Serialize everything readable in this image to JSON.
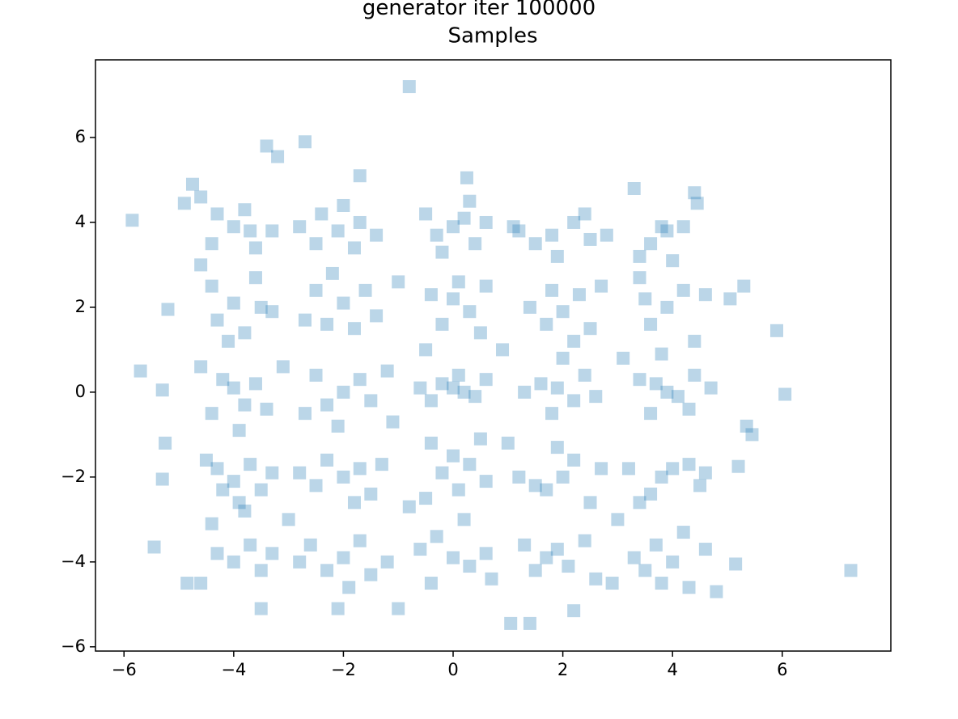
{
  "chart_data": {
    "type": "scatter",
    "suptitle": "generator iter 100000",
    "title": "Samples",
    "color": "#1f77b4",
    "alpha": 0.3,
    "marker": "square",
    "xlim": [
      -6.52,
      7.98
    ],
    "ylim": [
      -6.1,
      7.83
    ],
    "xticks": [
      {
        "value": -6,
        "label": "−6"
      },
      {
        "value": -4,
        "label": "−4"
      },
      {
        "value": -2,
        "label": "−2"
      },
      0,
      2,
      4,
      6
    ],
    "yticks": [
      {
        "value": -6,
        "label": "−6"
      },
      {
        "value": -4,
        "label": "−4"
      },
      {
        "value": -2,
        "label": "−2"
      },
      0,
      2,
      4,
      6
    ],
    "x": [
      -4.0,
      -3.7,
      -4.3,
      -3.6,
      -4.4,
      -3.8,
      -4.6,
      -3.3,
      -2.1,
      -1.7,
      -2.4,
      -1.8,
      -2.5,
      -1.4,
      -2.0,
      -2.8,
      0.0,
      0.2,
      -0.3,
      0.4,
      -0.5,
      0.6,
      -0.2,
      0.3,
      1.8,
      2.2,
      1.5,
      2.5,
      1.9,
      2.4,
      1.2,
      2.8,
      3.9,
      3.6,
      4.2,
      3.4,
      4.0,
      3.3,
      4.4,
      3.8,
      -4.0,
      -3.6,
      -4.3,
      -3.8,
      -3.5,
      -4.4,
      -3.3,
      -4.1,
      -2.0,
      -2.3,
      -1.6,
      -2.5,
      -1.8,
      -2.2,
      -1.4,
      -2.7,
      0.0,
      -0.2,
      0.3,
      0.1,
      -0.4,
      0.5,
      -0.5,
      0.6,
      2.0,
      1.7,
      2.3,
      1.8,
      2.5,
      1.4,
      2.2,
      2.7,
      3.9,
      3.6,
      4.2,
      3.5,
      4.4,
      3.8,
      4.6,
      3.4,
      -4.0,
      -3.8,
      -4.2,
      -3.6,
      -4.4,
      -3.9,
      -4.6,
      -3.4,
      -2.0,
      -1.7,
      -2.3,
      -1.5,
      -2.5,
      -2.1,
      -1.2,
      -2.7,
      0.0,
      0.2,
      -0.2,
      0.4,
      -0.4,
      0.1,
      0.6,
      -0.6,
      1.9,
      2.2,
      1.6,
      2.4,
      1.8,
      2.6,
      1.3,
      2.0,
      3.9,
      4.1,
      3.7,
      4.3,
      3.6,
      4.4,
      3.4,
      4.7,
      -4.0,
      -3.7,
      -4.3,
      -3.9,
      -3.5,
      -4.5,
      -3.3,
      -4.2,
      -2.0,
      -1.7,
      -2.3,
      -1.5,
      -2.5,
      -1.8,
      -2.8,
      -1.3,
      0.0,
      -0.2,
      0.3,
      0.1,
      -0.4,
      0.5,
      -0.5,
      0.6,
      2.0,
      1.7,
      2.2,
      1.5,
      2.5,
      1.9,
      2.7,
      1.2,
      4.0,
      4.3,
      3.6,
      3.8,
      4.5,
      3.4,
      4.6,
      3.2,
      -4.0,
      -3.7,
      -4.3,
      -3.5,
      -3.8,
      -4.4,
      -3.3,
      -4.6,
      -2.0,
      -1.7,
      -2.3,
      -1.5,
      -2.6,
      -1.9,
      -1.2,
      -2.8,
      0.0,
      -0.3,
      0.3,
      -0.6,
      0.2,
      0.6,
      -0.4,
      0.7,
      1.9,
      2.1,
      1.7,
      2.4,
      1.5,
      2.6,
      1.3,
      2.9,
      4.0,
      3.7,
      4.3,
      3.5,
      4.2,
      3.8,
      4.6,
      3.3,
      -0.8,
      7.25,
      -5.85,
      6.05,
      5.9,
      1.05,
      1.4,
      -1.0,
      -3.5,
      2.2,
      -2.1,
      -3.4,
      -2.7,
      -3.2,
      0.25,
      -1.7,
      -5.7,
      -5.3,
      -5.25,
      -5.3,
      -5.45,
      5.3,
      5.05,
      5.35,
      5.45,
      5.2,
      5.15,
      4.8,
      -4.85,
      -5.2,
      -4.9,
      -4.6,
      -4.75,
      4.45,
      1.1,
      -1.0,
      1.0,
      -1.1,
      3.1,
      -3.1,
      0.9,
      -0.8,
      3.0,
      -3.0
    ],
    "values": [
      3.9,
      3.8,
      4.2,
      3.4,
      3.5,
      4.3,
      3.0,
      3.8,
      3.8,
      4.0,
      4.2,
      3.4,
      3.5,
      3.7,
      4.4,
      3.9,
      3.9,
      4.1,
      3.7,
      3.5,
      4.2,
      4.0,
      3.3,
      4.5,
      3.7,
      4.0,
      3.5,
      3.6,
      3.2,
      4.2,
      3.8,
      3.7,
      3.8,
      3.5,
      3.9,
      3.2,
      3.1,
      4.8,
      4.7,
      3.9,
      2.1,
      2.7,
      1.7,
      1.4,
      2.0,
      2.5,
      1.9,
      1.2,
      2.1,
      1.6,
      2.4,
      2.4,
      1.5,
      2.8,
      1.8,
      1.7,
      2.2,
      1.6,
      1.9,
      2.6,
      2.3,
      1.4,
      1.0,
      2.5,
      1.9,
      1.6,
      2.3,
      2.4,
      1.5,
      2.0,
      1.2,
      2.5,
      2.0,
      1.6,
      2.4,
      2.2,
      1.2,
      0.9,
      2.3,
      2.7,
      0.1,
      -0.3,
      0.3,
      0.2,
      -0.5,
      -0.9,
      0.6,
      -0.4,
      0.0,
      0.3,
      -0.3,
      -0.2,
      0.4,
      -0.8,
      0.5,
      -0.5,
      0.1,
      0.0,
      0.2,
      -0.1,
      -0.2,
      0.4,
      0.3,
      0.1,
      0.1,
      -0.2,
      0.2,
      0.4,
      -0.5,
      -0.1,
      0.0,
      0.8,
      0.0,
      -0.1,
      0.2,
      -0.4,
      -0.5,
      0.4,
      0.3,
      0.1,
      -2.1,
      -1.7,
      -1.8,
      -2.6,
      -2.3,
      -1.6,
      -1.9,
      -2.3,
      -2.0,
      -1.8,
      -1.6,
      -2.4,
      -2.2,
      -2.6,
      -1.9,
      -1.7,
      -1.5,
      -1.9,
      -1.7,
      -2.3,
      -1.2,
      -1.1,
      -2.5,
      -2.1,
      -2.0,
      -2.3,
      -1.6,
      -2.2,
      -2.6,
      -1.3,
      -1.8,
      -2.0,
      -1.8,
      -1.7,
      -2.4,
      -2.0,
      -2.2,
      -2.6,
      -1.9,
      -1.8,
      -4.0,
      -3.6,
      -3.8,
      -4.2,
      -2.8,
      -3.1,
      -3.8,
      -4.5,
      -3.9,
      -3.5,
      -4.2,
      -4.3,
      -3.6,
      -4.6,
      -4.0,
      -4.0,
      -3.9,
      -3.4,
      -4.1,
      -3.7,
      -3.0,
      -3.8,
      -4.5,
      -4.4,
      -3.7,
      -4.1,
      -3.9,
      -3.5,
      -4.2,
      -4.4,
      -3.6,
      -4.5,
      -4.0,
      -3.6,
      -4.6,
      -4.2,
      -3.3,
      -4.5,
      -3.7,
      -3.9,
      7.2,
      -4.2,
      4.05,
      -0.05,
      1.45,
      -5.45,
      -5.45,
      -5.1,
      -5.1,
      -5.15,
      -5.1,
      5.8,
      5.9,
      5.55,
      5.05,
      5.1,
      0.5,
      0.05,
      -1.2,
      -2.05,
      -3.65,
      2.5,
      2.2,
      -0.8,
      -1.0,
      -1.75,
      -4.05,
      -4.7,
      -4.5,
      1.95,
      4.45,
      4.6,
      4.9,
      4.45,
      3.9,
      2.6,
      -1.2,
      -0.7,
      0.8,
      0.6,
      1.0,
      -2.7,
      -3.0,
      -3.0
    ]
  }
}
